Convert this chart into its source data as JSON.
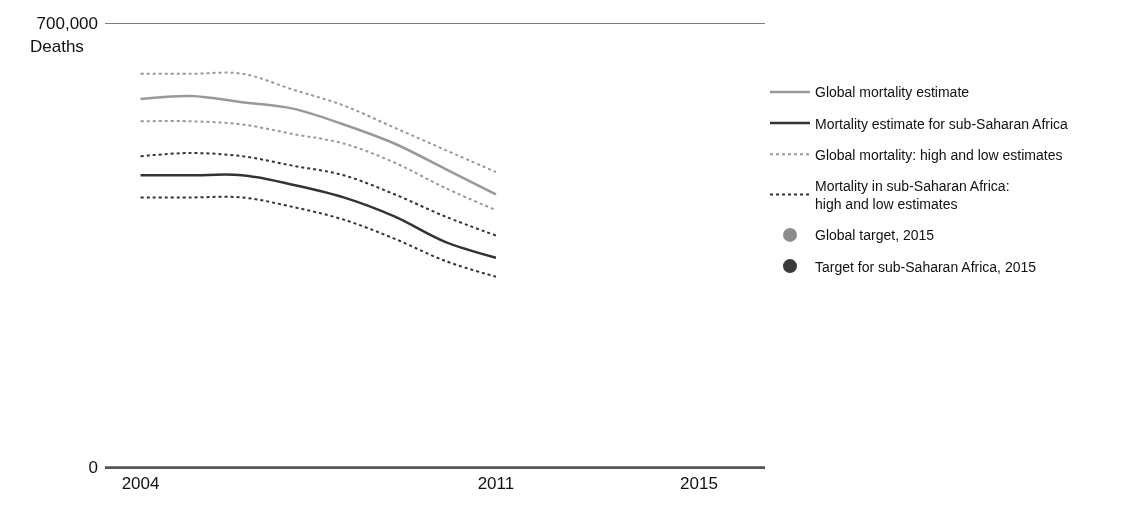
{
  "chart_data": {
    "type": "line",
    "ylabel": "Deaths",
    "x": [
      2004,
      2005,
      2006,
      2007,
      2008,
      2009,
      2010,
      2011
    ],
    "xlim": [
      2003.3,
      2016.3
    ],
    "xticks": [
      2004,
      2011,
      2015
    ],
    "ylim": [
      0,
      700000
    ],
    "yticks": [
      {
        "value": 0,
        "label": "0"
      },
      {
        "value": 700000,
        "label": "700,000"
      }
    ],
    "grid": "y",
    "legend": "right",
    "marker": "none",
    "series": [
      {
        "name": "Global mortality estimate",
        "color": "#999999",
        "line_style": "solid",
        "values": [
          580000,
          585000,
          575000,
          565000,
          540000,
          510000,
          470000,
          430000
        ]
      },
      {
        "name": "Mortality estimate for sub-Saharan Africa",
        "color": "#333333",
        "line_style": "solid",
        "values": [
          460000,
          460000,
          460000,
          445000,
          425000,
          395000,
          355000,
          330000
        ]
      },
      {
        "name": "Global mortality: high and low estimates",
        "color": "#999999",
        "line_style": "dotted",
        "values": [
          620000,
          620000,
          620000,
          595000,
          570000,
          535000,
          500000,
          465000
        ]
      },
      {
        "color": "#999999",
        "line_style": "dotted",
        "values": [
          545000,
          545000,
          540000,
          525000,
          510000,
          480000,
          440000,
          405000
        ]
      },
      {
        "name": "Mortality in sub-Saharan Africa:\nhigh and low estimates",
        "color": "#333333",
        "line_style": "dotted",
        "values": [
          490000,
          495000,
          490000,
          475000,
          460000,
          430000,
          395000,
          365000
        ]
      },
      {
        "color": "#333333",
        "line_style": "dotted",
        "values": [
          425000,
          425000,
          425000,
          410000,
          390000,
          360000,
          325000,
          300000
        ]
      },
      {
        "name": "Global target, 2015",
        "type": "scatter",
        "marker": "circle",
        "color": "#8c8c8c",
        "values": [
          null,
          null,
          null,
          null,
          null,
          null,
          null,
          null
        ]
      },
      {
        "name": "Target for sub-Saharan Africa, 2015",
        "type": "scatter",
        "marker": "circle",
        "color": "#3a3a3a",
        "values": [
          null,
          null,
          null,
          null,
          null,
          null,
          null,
          null
        ]
      }
    ]
  }
}
